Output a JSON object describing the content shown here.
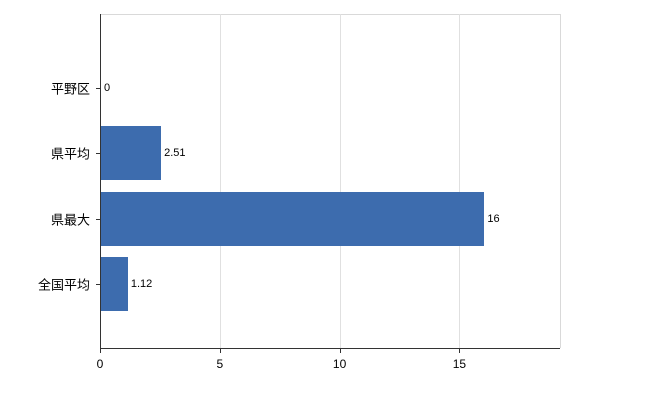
{
  "chart_data": {
    "type": "bar",
    "orientation": "horizontal",
    "title": "",
    "xlabel": "",
    "ylabel": "",
    "categories": [
      "平野区",
      "県平均",
      "県最大",
      "全国平均"
    ],
    "values": [
      0,
      2.51,
      16,
      1.12
    ],
    "value_labels": [
      "0",
      "2.51",
      "16",
      "1.12"
    ],
    "x_ticks": [
      0,
      5,
      10,
      15
    ],
    "x_tick_labels": [
      "0",
      "5",
      "10",
      "15"
    ],
    "xlim": [
      0,
      19.2
    ],
    "grid": true,
    "legend_position": "none",
    "bar_color": "#3d6cae",
    "background_color": "#ffffff"
  }
}
